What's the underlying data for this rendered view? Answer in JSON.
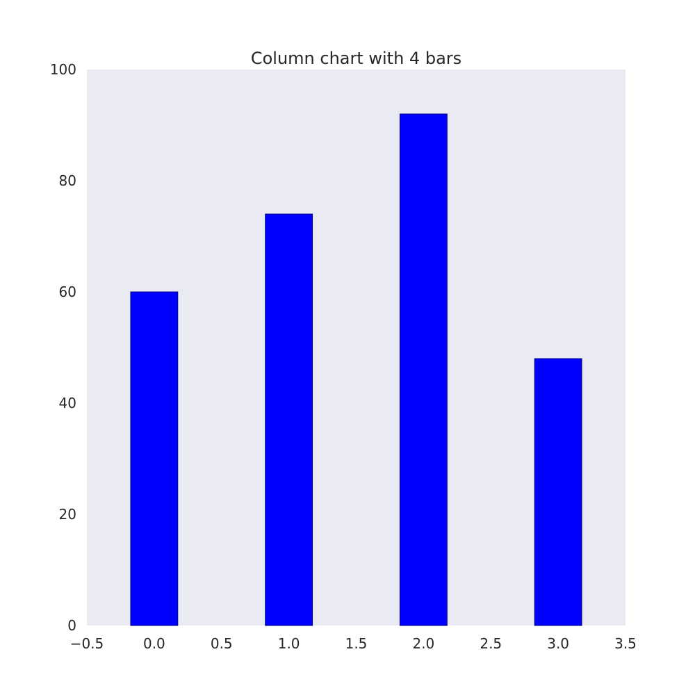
{
  "chart_data": {
    "type": "bar",
    "title": "Column chart with 4 bars",
    "xlabel": "",
    "ylabel": "",
    "x": [
      0,
      1,
      2,
      3
    ],
    "values": [
      60,
      74,
      92,
      48
    ],
    "bar_width": 0.35,
    "xlim": [
      -0.5,
      3.5
    ],
    "ylim": [
      0,
      100
    ],
    "xticks": [
      -0.5,
      0.0,
      0.5,
      1.0,
      1.5,
      2.0,
      2.5,
      3.0,
      3.5
    ],
    "xtick_labels": [
      "−0.5",
      "0.0",
      "0.5",
      "1.0",
      "1.5",
      "2.0",
      "2.5",
      "3.0",
      "3.5"
    ],
    "yticks": [
      0,
      20,
      40,
      60,
      80,
      100
    ],
    "ytick_labels": [
      "0",
      "20",
      "40",
      "60",
      "80",
      "100"
    ],
    "grid": false,
    "bar_color": "#0000ff",
    "background_color": "#eaeaf2"
  }
}
